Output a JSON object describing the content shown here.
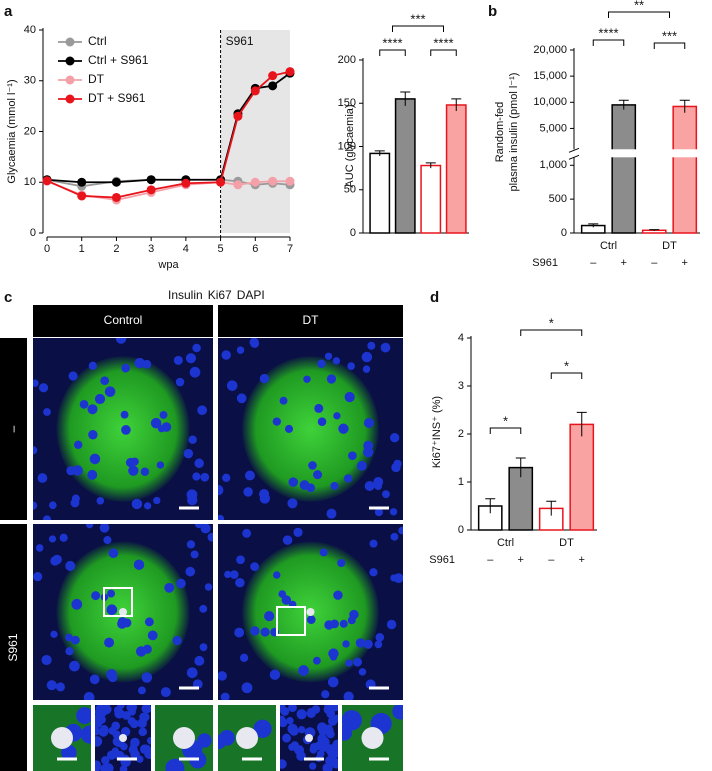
{
  "panel_labels": [
    "a",
    "b",
    "c",
    "d"
  ],
  "chart_data": [
    {
      "type": "line",
      "x": [
        0,
        1,
        2,
        3,
        4,
        5,
        5.5,
        6,
        6.5,
        7
      ],
      "xlim": [
        0,
        7
      ],
      "xticks": [
        0,
        1,
        2,
        3,
        4,
        5,
        6,
        7
      ],
      "ylim": [
        0,
        40
      ],
      "yticks": [
        0,
        10,
        20,
        30,
        40
      ],
      "xlabel": "wpa",
      "ylabel": "Glycaemia (mmol l⁻¹)",
      "shaded_region": {
        "x": [
          5,
          7
        ],
        "label": "S961",
        "color": "#e6e6e6"
      },
      "legend": "upper left",
      "series": [
        {
          "name": "Ctrl",
          "color": "#9a9a9a",
          "values": [
            10.5,
            9.2,
            10.2,
            10.5,
            10.5,
            10.5,
            10.2,
            9.5,
            9.8,
            9.5
          ]
        },
        {
          "name": "Ctrl + S961",
          "color": "#000000",
          "values": [
            10.5,
            10,
            10,
            10.5,
            10.5,
            10.5,
            23.5,
            28.5,
            29,
            31.5
          ]
        },
        {
          "name": "DT",
          "color": "#f4a0a8",
          "values": [
            10.2,
            7.5,
            6.5,
            8,
            9.5,
            10,
            9.5,
            10,
            10.2,
            10.2
          ]
        },
        {
          "name": "DT + S961",
          "color": "#e8141c",
          "values": [
            10.3,
            7.3,
            7,
            8.5,
            9.8,
            10,
            23,
            28,
            31,
            31.8
          ]
        }
      ]
    },
    {
      "type": "bar",
      "categories": [
        null,
        null,
        null,
        null
      ],
      "values": [
        92,
        155,
        78,
        148
      ],
      "errors": [
        3,
        8,
        3,
        7
      ],
      "colors": [
        "#ffffff",
        "#8c8c8c",
        "#ffffff",
        "#f9a3a3"
      ],
      "edge_colors": [
        "#000000",
        "#000000",
        "#e8141c",
        "#e8141c"
      ],
      "ylim": [
        0,
        200
      ],
      "yticks": [
        0,
        50,
        100,
        150,
        200
      ],
      "ylabel": "AUC (glycaemia)",
      "significance": [
        "***",
        "****",
        "****"
      ]
    },
    {
      "type": "bar",
      "categories": [
        "–",
        "+",
        "–",
        "+"
      ],
      "group_labels": [
        "Ctrl",
        "DT"
      ],
      "treatment_label": "S961",
      "values": [
        110,
        9500,
        40,
        9200
      ],
      "errors": [
        25,
        900,
        10,
        1200
      ],
      "colors": [
        "#ffffff",
        "#8c8c8c",
        "#ffffff",
        "#f9a3a3"
      ],
      "edge_colors": [
        "#000000",
        "#000000",
        "#e8141c",
        "#e8141c"
      ],
      "ylim": [
        0,
        20000
      ],
      "ybreak": [
        1000,
        2500
      ],
      "yticks": [
        0,
        500,
        {
          "value": 1000,
          "label": "1,000"
        },
        {
          "value": 5000,
          "label": "5,000"
        },
        {
          "value": 10000,
          "label": "10,000"
        },
        {
          "value": 15000,
          "label": "15,000"
        },
        {
          "value": 20000,
          "label": "20,000"
        }
      ],
      "ylabel": [
        "Random-fed",
        "plasma insulin (pmol l⁻¹)"
      ],
      "significance": [
        "**",
        "****",
        "***"
      ]
    },
    {
      "type": "bar",
      "categories": [
        "–",
        "+",
        "–",
        "+"
      ],
      "group_labels": [
        "Ctrl",
        "DT"
      ],
      "treatment_label": "S961",
      "values": [
        0.5,
        1.3,
        0.45,
        2.2
      ],
      "errors": [
        0.15,
        0.2,
        0.15,
        0.25
      ],
      "colors": [
        "#ffffff",
        "#8c8c8c",
        "#ffffff",
        "#f9a3a3"
      ],
      "edge_colors": [
        "#000000",
        "#000000",
        "#e8141c",
        "#e8141c"
      ],
      "ylim": [
        0,
        4
      ],
      "yticks": [
        0,
        1,
        2,
        3,
        4
      ],
      "ylabel": "Ki67⁺INS⁺ (%)",
      "significance": [
        "*",
        "*",
        "*"
      ]
    }
  ],
  "microscopy": {
    "channels": [
      {
        "name": "Insulin",
        "color": "#22c22a"
      },
      {
        "name": "Ki67",
        "color": "#9a9a9a"
      },
      {
        "name": "DAPI",
        "color": "#2a5bd7"
      }
    ],
    "columns": [
      "Control",
      "DT"
    ],
    "rows": [
      "–",
      "S961"
    ]
  }
}
